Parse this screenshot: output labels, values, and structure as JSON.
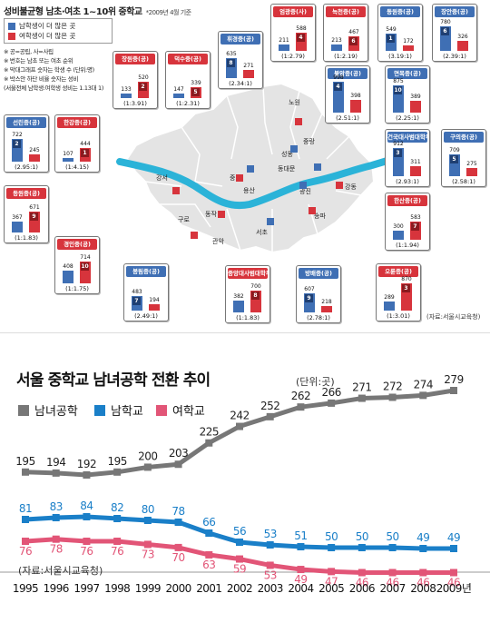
{
  "map": {
    "title": "성비불균형 남초·여초 1~10위 중학교",
    "date_note": "*2009년 4월 기준",
    "legend": {
      "male": "남학생이 더 많은 곳",
      "female": "여학생이 더 많은 곳"
    },
    "notes": [
      "※ 공=공립, 사=사립",
      "※ 번호는 남초 또는 여초 순위",
      "※ 막대그래프 숫자는 학생 수 (단위:명)",
      "※ 박스안 하단 비율 숫자는 성비",
      "(서울전체 남학생:여학생 성비는 1.13대 1)"
    ],
    "source": "(자료:서울시교육청)",
    "colors": {
      "male": "#3f6fb4",
      "female": "#d7343c",
      "river": "#2bb3d8",
      "land": "#e4e4e4"
    },
    "districts": [
      "강서",
      "구로",
      "관악",
      "동작",
      "서초",
      "송파",
      "강동",
      "광진",
      "성동",
      "중랑",
      "동대문",
      "노원",
      "용산",
      "중"
    ],
    "schools": [
      {
        "name": "엄광중(사)",
        "type": "female",
        "rank": "4",
        "male": "211",
        "female": "588",
        "ratio": "(1:2.79)"
      },
      {
        "name": "녹천중(공)",
        "type": "female",
        "rank": "6",
        "male": "213",
        "female": "467",
        "ratio": "(1:2.19)"
      },
      {
        "name": "동원중(공)",
        "type": "male",
        "rank": "1",
        "male": "549",
        "female": "172",
        "ratio": "(3.19:1)"
      },
      {
        "name": "장안중(공)",
        "type": "male",
        "rank": "6",
        "male": "780",
        "female": "326",
        "ratio": "(2.39:1)"
      },
      {
        "name": "휘경중(공)",
        "type": "male",
        "rank": "8",
        "male": "635",
        "female": "271",
        "ratio": "(2.34:1)"
      },
      {
        "name": "장원중(공)",
        "type": "female",
        "rank": "2",
        "male": "133",
        "female": "520",
        "ratio": "(1:3.91)"
      },
      {
        "name": "덕수중(공)",
        "type": "female",
        "rank": "5",
        "male": "147",
        "female": "339",
        "ratio": "(1:2.31)"
      },
      {
        "name": "불암중(공)",
        "type": "male",
        "rank": "4",
        "male": "998",
        "female": "398",
        "ratio": "(2.51:1)"
      },
      {
        "name": "면목중(공)",
        "type": "male",
        "rank": "10",
        "male": "875",
        "female": "389",
        "ratio": "(2.25:1)"
      },
      {
        "name": "선린중(공)",
        "type": "male",
        "rank": "2",
        "male": "722",
        "female": "245",
        "ratio": "(2.95:1)"
      },
      {
        "name": "한강중(공)",
        "type": "female",
        "rank": "1",
        "male": "107",
        "female": "444",
        "ratio": "(1:4.15)"
      },
      {
        "name": "건국대사범대학부속중(공)",
        "type": "male",
        "rank": "3",
        "male": "912",
        "female": "311",
        "ratio": "(2.93:1)"
      },
      {
        "name": "구의중(공)",
        "type": "male",
        "rank": "5",
        "male": "709",
        "female": "275",
        "ratio": "(2.58:1)"
      },
      {
        "name": "등원중(공)",
        "type": "female",
        "rank": "9",
        "male": "367",
        "female": "671",
        "ratio": "(1:1.83)"
      },
      {
        "name": "한산중(공)",
        "type": "female",
        "rank": "7",
        "male": "300",
        "female": "583",
        "ratio": "(1:1.94)"
      },
      {
        "name": "경인중(공)",
        "type": "female",
        "rank": "10",
        "male": "408",
        "female": "714",
        "ratio": "(1:1.75)"
      },
      {
        "name": "봉림중(공)",
        "type": "male",
        "rank": "7",
        "male": "483",
        "female": "194",
        "ratio": "(2.49:1)"
      },
      {
        "name": "중앙대사범대학부속중(사)",
        "type": "female",
        "rank": "8",
        "male": "382",
        "female": "700",
        "ratio": "(1:1.83)"
      },
      {
        "name": "방배중(공)",
        "type": "male",
        "rank": "9",
        "male": "607",
        "female": "218",
        "ratio": "(2.78:1)"
      },
      {
        "name": "오륜중(공)",
        "type": "female",
        "rank": "3",
        "male": "289",
        "female": "870",
        "ratio": "(1:3.01)"
      }
    ]
  },
  "chart_data": {
    "type": "line",
    "title": "서울 중학교 남녀공학 전환 추이",
    "unit": "(단위:곳)",
    "source": "(자료:서울시교육청)",
    "categories": [
      "1995",
      "1996",
      "1997",
      "1998",
      "1999",
      "2000",
      "2001",
      "2002",
      "2003",
      "2004",
      "2005",
      "2006",
      "2007",
      "2008",
      "2009년"
    ],
    "series": [
      {
        "name": "남녀공학",
        "color": "#777777",
        "values": [
          195,
          194,
          192,
          195,
          200,
          203,
          225,
          242,
          252,
          262,
          266,
          271,
          272,
          274,
          279
        ]
      },
      {
        "name": "남학교",
        "color": "#1a7fc8",
        "values": [
          81,
          83,
          84,
          82,
          80,
          78,
          66,
          56,
          53,
          51,
          50,
          50,
          50,
          49,
          49
        ]
      },
      {
        "name": "여학교",
        "color": "#e25577",
        "values": [
          76,
          78,
          76,
          76,
          73,
          70,
          63,
          59,
          53,
          49,
          47,
          46,
          46,
          46,
          46
        ]
      }
    ]
  }
}
